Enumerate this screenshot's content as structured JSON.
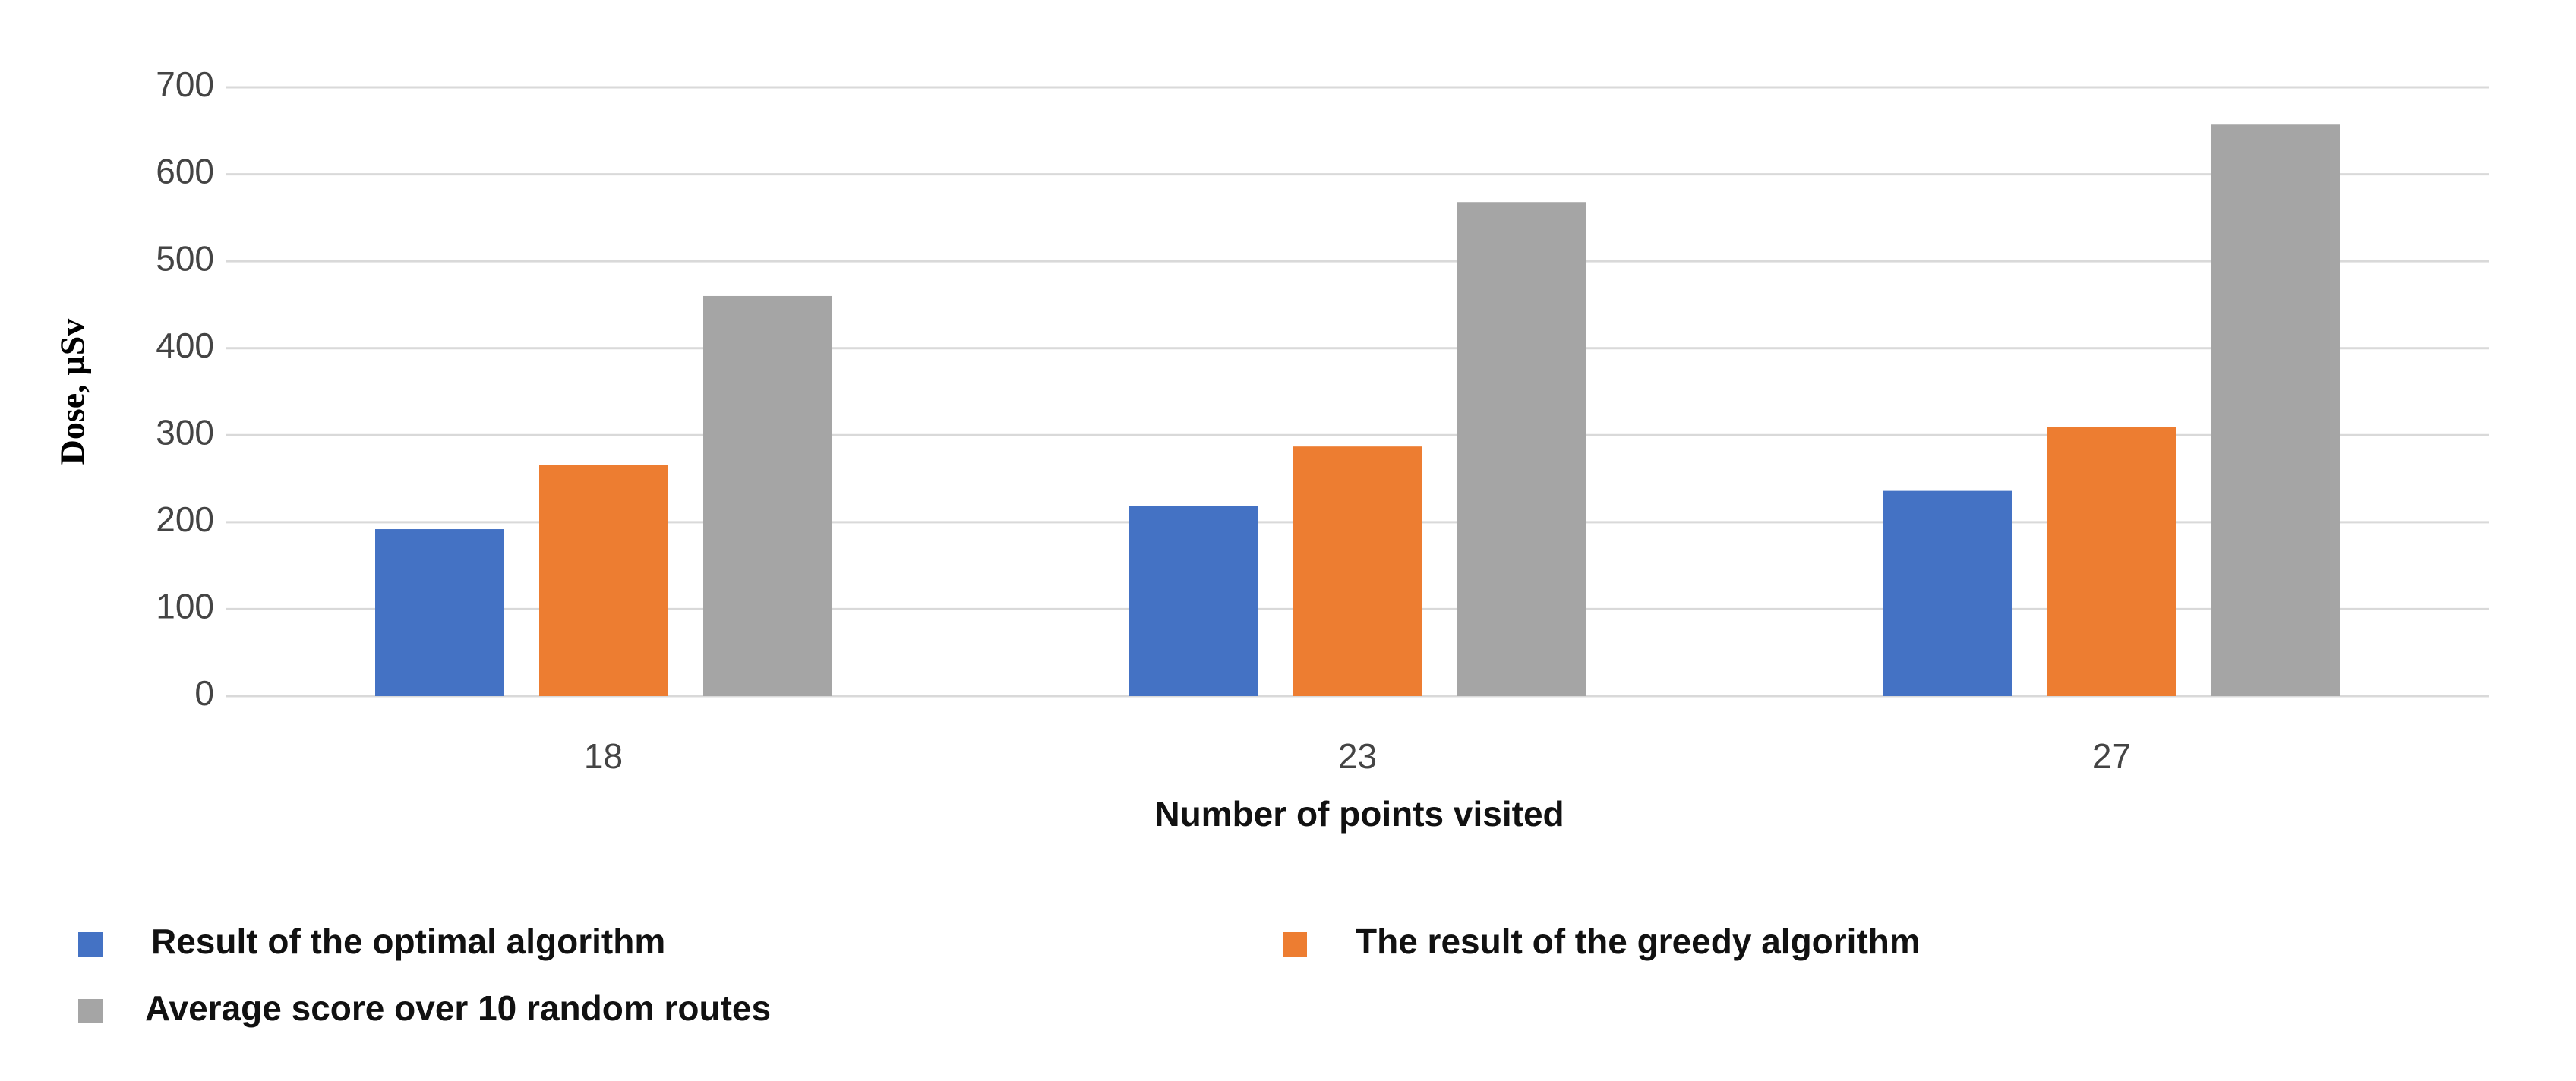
{
  "chart_data": {
    "type": "bar",
    "x_label": "Number of points visited",
    "y_label": "Dose, µSv",
    "categories": [
      "18",
      "23",
      "27"
    ],
    "series": [
      {
        "name": "Result of the optimal algorithm",
        "color": "#4472c4",
        "values": [
          192,
          219,
          236
        ]
      },
      {
        "name": "The result of the greedy algorithm",
        "color": "#ed7d31",
        "values": [
          266,
          287,
          309
        ]
      },
      {
        "name": "Average score over 10 random routes",
        "color": "#a5a5a5",
        "values": [
          460,
          568,
          657
        ]
      }
    ],
    "ylim": [
      0,
      700
    ],
    "yticks": [
      0,
      100,
      200,
      300,
      400,
      500,
      600,
      700
    ],
    "grid": true,
    "legend": "bottom"
  }
}
